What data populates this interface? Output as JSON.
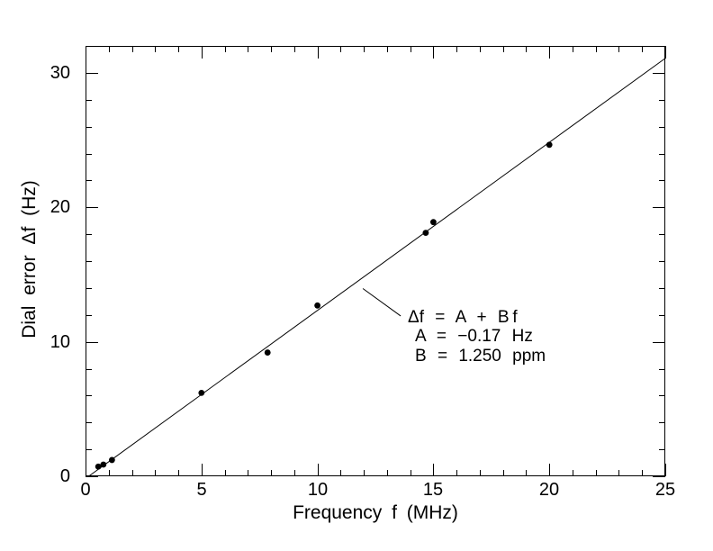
{
  "colors": {
    "foreground": "#000000",
    "background": "#ffffff"
  },
  "chart_data": {
    "type": "scatter",
    "title": "",
    "xlabel": "Frequency f (MHz)",
    "ylabel": "Dial error Δf (Hz)",
    "xlim": [
      0,
      25
    ],
    "ylim": [
      0,
      32
    ],
    "grid": false,
    "legend": "none",
    "marker": "filled-circle",
    "marker_radius_px": 3.4,
    "x_major_ticks": [
      0,
      5,
      10,
      15,
      20,
      25
    ],
    "x_major_tick_labels": [
      "0",
      "5",
      "10",
      "15",
      "20",
      "25"
    ],
    "x_minor_tick_step": 1,
    "y_major_ticks": [
      0,
      10,
      20,
      30
    ],
    "y_major_tick_labels": [
      "0",
      "10",
      "20",
      "30"
    ],
    "y_minor_tick_step": 2,
    "points": [
      [
        0.55,
        0.72
      ],
      [
        0.77,
        0.87
      ],
      [
        1.14,
        1.21
      ],
      [
        5.0,
        6.2
      ],
      [
        7.85,
        9.2
      ],
      [
        10.0,
        12.7
      ],
      [
        14.67,
        18.1
      ],
      [
        15.0,
        18.9
      ],
      [
        20.0,
        24.65
      ]
    ],
    "fit": {
      "model": "Δf = A + B f",
      "A_hz": -0.17,
      "B_ppm": 1.25
    },
    "annotation": {
      "lines": [
        "Δf = A + B f",
        "A = −0.17 Hz",
        "B = 1.250 ppm"
      ],
      "leader_line": {
        "from": {
          "f": 11.96,
          "df": 13.96
        },
        "to": {
          "f": 13.59,
          "df": 11.92
        }
      }
    }
  }
}
